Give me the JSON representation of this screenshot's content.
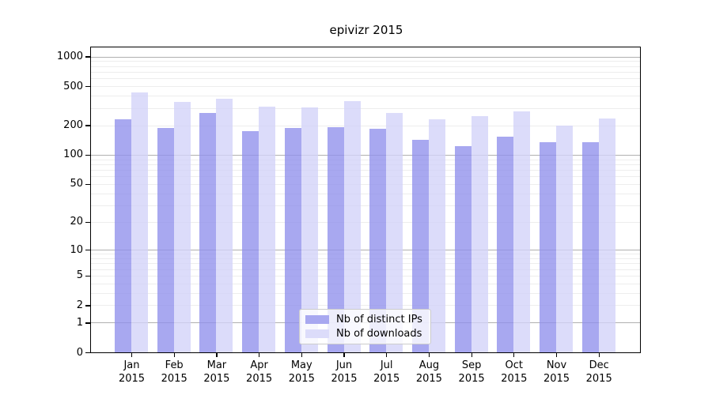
{
  "title": "epivizr 2015",
  "y_axis": {
    "tick_labels": [
      "1000",
      "500",
      "200",
      "100",
      "50",
      "20",
      "10",
      "5",
      "2",
      "1",
      "0"
    ]
  },
  "x_axis": {
    "year": "2015"
  },
  "legend": {
    "position": "lower center"
  },
  "chart_data": {
    "type": "bar",
    "scale": "log1p",
    "title": "epivizr 2015",
    "categories": [
      "Jan",
      "Feb",
      "Mar",
      "Apr",
      "May",
      "Jun",
      "Jul",
      "Aug",
      "Sep",
      "Oct",
      "Nov",
      "Dec"
    ],
    "x_tick_labels_line2": "2015",
    "series": [
      {
        "name": "Nb of distinct IPs",
        "color": "#a8a8f0",
        "values": [
          232,
          186,
          266,
          175,
          186,
          192,
          184,
          143,
          123,
          154,
          135,
          134
        ]
      },
      {
        "name": "Nb of downloads",
        "color": "#dcdcfa",
        "values": [
          434,
          344,
          374,
          309,
          305,
          350,
          266,
          232,
          249,
          279,
          200,
          235
        ]
      }
    ],
    "y_ticks": [
      1000,
      500,
      200,
      100,
      50,
      20,
      10,
      5,
      2,
      1,
      0
    ],
    "y_minor_gridlines": [
      2,
      3,
      4,
      5,
      6,
      7,
      8,
      9,
      20,
      30,
      40,
      50,
      60,
      70,
      80,
      90,
      200,
      300,
      400,
      500,
      600,
      700,
      800,
      900
    ],
    "y_major_gridlines": [
      1,
      10,
      100,
      1000
    ],
    "ylim": [
      0,
      1230
    ],
    "grid": true,
    "legend_position": "lower center"
  }
}
